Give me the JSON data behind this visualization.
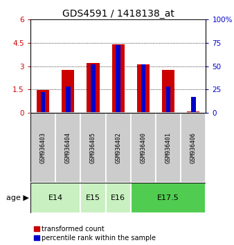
{
  "title": "GDS4591 / 1418138_at",
  "samples": [
    "GSM936403",
    "GSM936404",
    "GSM936405",
    "GSM936402",
    "GSM936400",
    "GSM936401",
    "GSM936406"
  ],
  "transformed_count": [
    1.45,
    2.75,
    3.22,
    4.42,
    3.12,
    2.75,
    0.07
  ],
  "percentile_rank_pct": [
    22,
    28,
    52,
    73,
    52,
    28,
    17
  ],
  "age_group_spans": [
    {
      "label": "E14",
      "start": 0,
      "end": 2,
      "color": "#c8f0c0"
    },
    {
      "label": "E15",
      "start": 2,
      "end": 3,
      "color": "#c8f0c0"
    },
    {
      "label": "E16",
      "start": 3,
      "end": 4,
      "color": "#c8f0c0"
    },
    {
      "label": "E17.5",
      "start": 4,
      "end": 7,
      "color": "#50cc50"
    }
  ],
  "left_ylim": [
    0,
    6
  ],
  "left_yticks": [
    0,
    1.5,
    3.0,
    4.5,
    6
  ],
  "left_yticklabels": [
    "0",
    "1.5",
    "3",
    "4.5",
    "6"
  ],
  "right_ylim": [
    0,
    100
  ],
  "right_yticks": [
    0,
    25,
    50,
    75,
    100
  ],
  "right_yticklabels": [
    "0",
    "25",
    "50",
    "75",
    "100%"
  ],
  "bar_color_red": "#cc0000",
  "bar_color_blue": "#0000cc",
  "sample_bg_color": "#cccccc",
  "title_fontsize": 10,
  "tick_fontsize": 7.5,
  "label_fontsize": 7.5
}
